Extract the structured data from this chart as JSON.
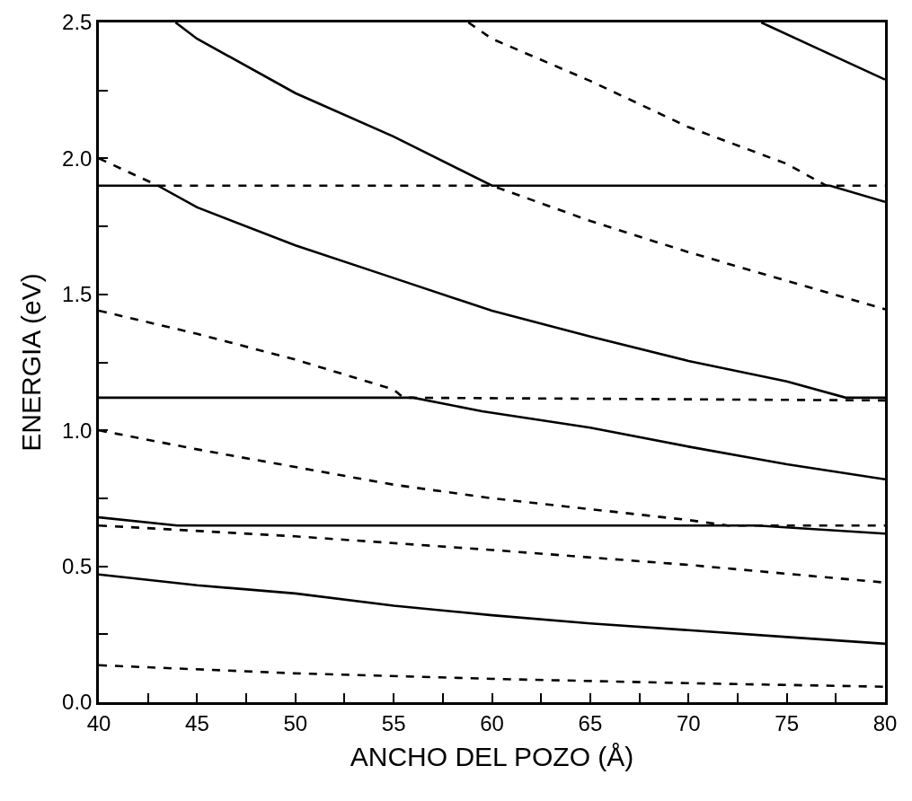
{
  "chart_data": {
    "type": "line",
    "xlabel": "ANCHO DEL POZO (Å)",
    "ylabel": "ENERGIA (eV)",
    "xlim": [
      40,
      80
    ],
    "ylim": [
      0,
      2.5
    ],
    "xticks": [
      40,
      {
        "value": 42.5,
        "label": null
      },
      45,
      {
        "value": 47.5,
        "label": null
      },
      50,
      {
        "value": 52.5,
        "label": null
      },
      55,
      {
        "value": 57.5,
        "label": null
      },
      60,
      {
        "value": 62.5,
        "label": null
      },
      65,
      {
        "value": 67.5,
        "label": null
      },
      70,
      {
        "value": 72.5,
        "label": null
      },
      75,
      {
        "value": 77.5,
        "label": null
      },
      80
    ],
    "yticks": [
      {
        "value": 0,
        "label": "0.0"
      },
      {
        "value": 0.25,
        "label": null
      },
      {
        "value": 0.5,
        "label": "0.5"
      },
      {
        "value": 0.75,
        "label": null
      },
      {
        "value": 1,
        "label": "1.0"
      },
      {
        "value": 1.25,
        "label": null
      },
      {
        "value": 1.5,
        "label": "1.5"
      },
      {
        "value": 1.75,
        "label": null
      },
      {
        "value": 2,
        "label": "2.0"
      },
      {
        "value": 2.25,
        "label": null
      },
      {
        "value": 2.5,
        "label": "2.5"
      }
    ],
    "marker": "none",
    "series": [
      {
        "color": "#000000",
        "line_style": "solid",
        "x": [
          40,
          45,
          50,
          55,
          60,
          65,
          70,
          75,
          80
        ],
        "values": [
          0.47,
          0.43,
          0.4,
          0.355,
          0.32,
          0.29,
          0.265,
          0.24,
          0.215
        ]
      },
      {
        "color": "#000000",
        "line_style": "solid",
        "x": [
          40,
          44,
          73.5,
          80
        ],
        "values": [
          0.68,
          0.65,
          0.65,
          0.62
        ]
      },
      {
        "color": "#000000",
        "line_style": "solid",
        "x": [
          40,
          56,
          59.5,
          65,
          70,
          75,
          80
        ],
        "values": [
          1.12,
          1.12,
          1.07,
          1.01,
          0.94,
          0.875,
          0.82
        ]
      },
      {
        "color": "#000000",
        "line_style": "solid",
        "x": [
          40,
          43,
          45,
          50,
          55,
          60,
          65,
          70,
          75,
          78,
          80
        ],
        "values": [
          1.9,
          1.9,
          1.82,
          1.68,
          1.56,
          1.44,
          1.345,
          1.255,
          1.18,
          1.12,
          1.12
        ]
      },
      {
        "color": "#000000",
        "line_style": "solid",
        "x": [
          43.9,
          45,
          50,
          55,
          60,
          77.2,
          80
        ],
        "values": [
          2.5,
          2.44,
          2.24,
          2.08,
          1.9,
          1.9,
          1.84
        ]
      },
      {
        "color": "#000000",
        "line_style": "solid",
        "x": [
          73.7,
          77,
          80
        ],
        "values": [
          2.5,
          2.39,
          2.29
        ]
      },
      {
        "color": "#000000",
        "line_style": "dashed",
        "x": [
          40,
          50,
          60,
          70,
          80
        ],
        "values": [
          0.136,
          0.106,
          0.086,
          0.07,
          0.057
        ]
      },
      {
        "color": "#000000",
        "line_style": "dashed",
        "x": [
          40,
          50,
          60,
          70,
          80
        ],
        "values": [
          0.65,
          0.61,
          0.56,
          0.505,
          0.44
        ]
      },
      {
        "color": "#000000",
        "line_style": "dashed",
        "x": [
          40,
          45,
          50,
          55,
          60,
          65,
          70,
          72,
          80
        ],
        "values": [
          1.0,
          0.93,
          0.865,
          0.8,
          0.75,
          0.71,
          0.67,
          0.65,
          0.65
        ]
      },
      {
        "color": "#000000",
        "line_style": "dashed",
        "x": [
          40,
          45,
          50,
          55,
          55.5,
          80
        ],
        "values": [
          1.44,
          1.355,
          1.26,
          1.15,
          1.12,
          1.11
        ]
      },
      {
        "color": "#000000",
        "line_style": "dashed",
        "x": [
          40,
          43,
          60,
          65,
          70,
          75,
          80
        ],
        "values": [
          2.0,
          1.9,
          1.9,
          1.77,
          1.655,
          1.55,
          1.445
        ]
      },
      {
        "color": "#000000",
        "line_style": "dashed",
        "x": [
          58.8,
          60,
          65,
          70,
          75,
          77,
          80
        ],
        "values": [
          2.5,
          2.44,
          2.285,
          2.115,
          1.98,
          1.9,
          1.9
        ]
      }
    ]
  }
}
